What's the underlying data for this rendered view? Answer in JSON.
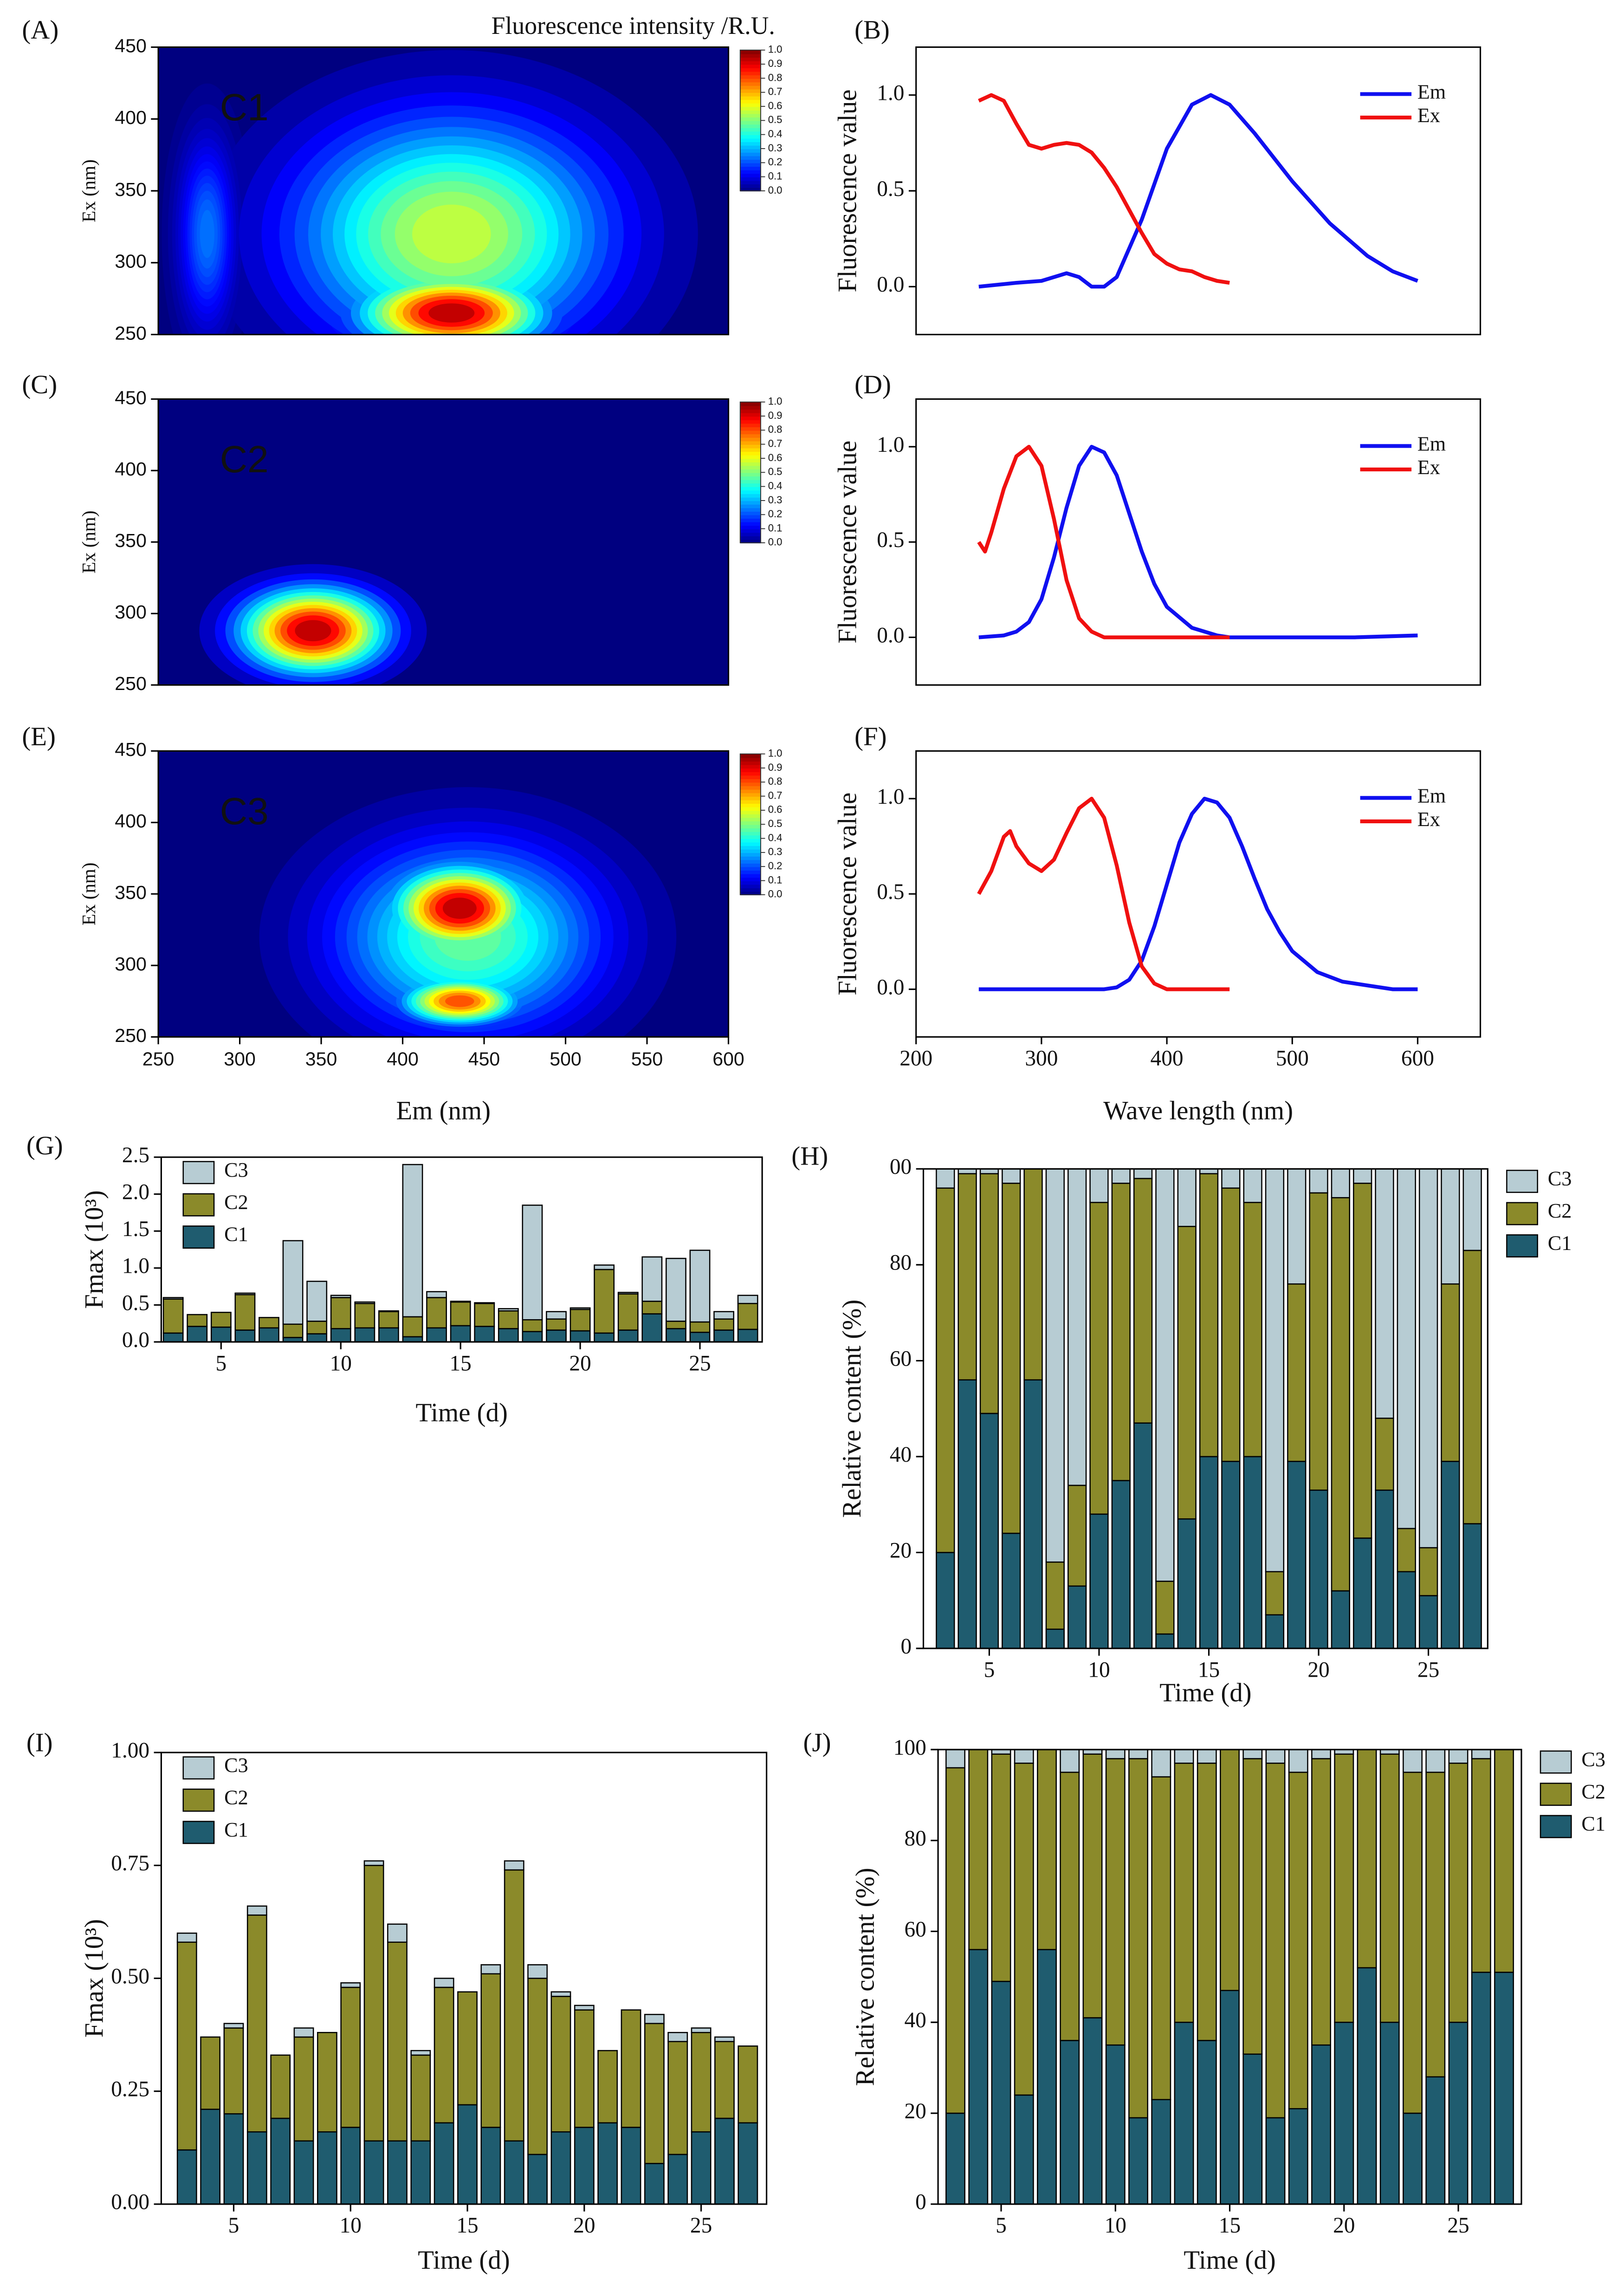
{
  "chart_data": [
    {
      "type": "contour",
      "label": "(A)",
      "annotation": "C1",
      "colorbar_title": "Fluorescence intensity /R.U.",
      "xlim": [
        250,
        600
      ],
      "ylim": [
        250,
        450
      ],
      "yticks": [
        250,
        300,
        350,
        400,
        450
      ],
      "ylabel": "Ex (nm)",
      "colorbar_ticks": [
        {
          "value": 0,
          "label": "0.0"
        },
        0.1,
        0.2,
        0.3,
        0.4,
        0.5,
        0.6,
        0.7,
        0.8,
        0.9,
        {
          "value": 1,
          "label": "1.0"
        }
      ],
      "peaks": [
        {
          "em": 280,
          "ex": 320,
          "em_spread": 12,
          "ex_spread": 45,
          "value": 0.25
        },
        {
          "em": 430,
          "ex": 320,
          "em_spread": 65,
          "ex_spread": 55,
          "value": 0.6
        },
        {
          "em": 430,
          "ex": 265,
          "em_spread": 38,
          "ex_spread": 18,
          "value": 1.0
        }
      ]
    },
    {
      "type": "line",
      "label": "(B)",
      "xlim": [
        200,
        650
      ],
      "ylim": [
        -0.25,
        1.25
      ],
      "yticks": [
        {
          "value": 0,
          "label": "0.0"
        },
        0.5,
        {
          "value": 1,
          "label": "1.0"
        }
      ],
      "ylabel": "Fluorescence value",
      "legend": "upper right",
      "series": [
        {
          "name": "Em",
          "color": "#1010f0",
          "x": [
            250,
            280,
            300,
            320,
            330,
            340,
            350,
            360,
            380,
            400,
            420,
            435,
            450,
            470,
            500,
            530,
            560,
            580,
            600
          ],
          "values": [
            0.0,
            0.02,
            0.03,
            0.07,
            0.05,
            0.0,
            0.0,
            0.05,
            0.35,
            0.72,
            0.95,
            1.0,
            0.95,
            0.8,
            0.55,
            0.33,
            0.16,
            0.08,
            0.03
          ]
        },
        {
          "name": "Ex",
          "color": "#f01010",
          "x": [
            250,
            260,
            270,
            280,
            290,
            300,
            310,
            320,
            330,
            340,
            350,
            360,
            370,
            380,
            390,
            400,
            410,
            420,
            430,
            440,
            450
          ],
          "values": [
            0.97,
            1.0,
            0.97,
            0.85,
            0.74,
            0.72,
            0.74,
            0.75,
            0.74,
            0.7,
            0.62,
            0.52,
            0.4,
            0.28,
            0.17,
            0.12,
            0.09,
            0.08,
            0.05,
            0.03,
            0.02
          ]
        }
      ]
    },
    {
      "type": "contour",
      "label": "(C)",
      "annotation": "C2",
      "xlim": [
        250,
        600
      ],
      "ylim": [
        250,
        450
      ],
      "yticks": [
        250,
        300,
        350,
        400,
        450
      ],
      "ylabel": "Ex (nm)",
      "colorbar_ticks": [
        {
          "value": 0,
          "label": "0.0"
        },
        0.1,
        0.2,
        0.3,
        0.4,
        0.5,
        0.6,
        0.7,
        0.8,
        0.9,
        {
          "value": 1,
          "label": "1.0"
        }
      ],
      "peaks": [
        {
          "em": 345,
          "ex": 288,
          "em_spread": 30,
          "ex_spread": 20,
          "value": 1.0
        }
      ]
    },
    {
      "type": "line",
      "label": "(D)",
      "xlim": [
        200,
        650
      ],
      "ylim": [
        -0.25,
        1.25
      ],
      "yticks": [
        {
          "value": 0,
          "label": "0.0"
        },
        0.5,
        {
          "value": 1,
          "label": "1.0"
        }
      ],
      "ylabel": "Fluorescence value",
      "legend": "upper right",
      "series": [
        {
          "name": "Em",
          "color": "#1010f0",
          "x": [
            250,
            270,
            280,
            290,
            300,
            310,
            320,
            330,
            340,
            350,
            360,
            370,
            380,
            390,
            400,
            420,
            440,
            450,
            500,
            550,
            600
          ],
          "values": [
            0.0,
            0.01,
            0.03,
            0.08,
            0.2,
            0.42,
            0.68,
            0.9,
            1.0,
            0.97,
            0.85,
            0.65,
            0.45,
            0.28,
            0.16,
            0.05,
            0.01,
            0.0,
            0.0,
            0.0,
            0.01
          ]
        },
        {
          "name": "Ex",
          "color": "#f01010",
          "x": [
            250,
            255,
            260,
            270,
            280,
            290,
            300,
            310,
            320,
            330,
            340,
            350,
            400,
            450
          ],
          "values": [
            0.5,
            0.45,
            0.55,
            0.78,
            0.95,
            1.0,
            0.9,
            0.62,
            0.3,
            0.1,
            0.03,
            0.0,
            0.0,
            0.0
          ]
        }
      ]
    },
    {
      "type": "contour",
      "label": "(E)",
      "annotation": "C3",
      "xlim": [
        250,
        600
      ],
      "ylim": [
        250,
        450
      ],
      "xticks": [
        250,
        300,
        350,
        400,
        450,
        500,
        550,
        600
      ],
      "yticks": [
        250,
        300,
        350,
        400,
        450
      ],
      "xlabel": "Em (nm)",
      "ylabel": "Ex (nm)",
      "colorbar_ticks": [
        {
          "value": 0,
          "label": "0.0"
        },
        0.1,
        0.2,
        0.3,
        0.4,
        0.5,
        0.6,
        0.7,
        0.8,
        0.9,
        {
          "value": 1,
          "label": "1.0"
        }
      ],
      "peaks": [
        {
          "em": 440,
          "ex": 320,
          "em_spread": 55,
          "ex_spread": 45,
          "value": 0.5
        },
        {
          "em": 435,
          "ex": 275,
          "em_spread": 24,
          "ex_spread": 11,
          "value": 0.85
        },
        {
          "em": 435,
          "ex": 340,
          "em_spread": 28,
          "ex_spread": 20,
          "value": 1.0
        }
      ]
    },
    {
      "type": "line",
      "label": "(F)",
      "xlim": [
        200,
        650
      ],
      "ylim": [
        -0.25,
        1.25
      ],
      "xticks": [
        200,
        300,
        400,
        500,
        600
      ],
      "yticks": [
        {
          "value": 0,
          "label": "0.0"
        },
        0.5,
        {
          "value": 1,
          "label": "1.0"
        }
      ],
      "xlabel": "Wave length (nm)",
      "ylabel": "Fluorescence value",
      "legend": "upper right",
      "series": [
        {
          "name": "Em",
          "color": "#1010f0",
          "x": [
            250,
            350,
            360,
            370,
            380,
            390,
            400,
            410,
            420,
            430,
            440,
            450,
            460,
            470,
            480,
            490,
            500,
            520,
            540,
            560,
            580,
            600
          ],
          "values": [
            0.0,
            0.0,
            0.01,
            0.05,
            0.15,
            0.33,
            0.55,
            0.77,
            0.92,
            1.0,
            0.98,
            0.9,
            0.75,
            0.58,
            0.42,
            0.3,
            0.2,
            0.09,
            0.04,
            0.02,
            0.0,
            0.0
          ]
        },
        {
          "name": "Ex",
          "color": "#f01010",
          "x": [
            250,
            260,
            270,
            275,
            280,
            290,
            300,
            310,
            320,
            330,
            340,
            350,
            360,
            370,
            380,
            390,
            400,
            450
          ],
          "values": [
            0.5,
            0.62,
            0.8,
            0.83,
            0.75,
            0.66,
            0.62,
            0.68,
            0.82,
            0.95,
            1.0,
            0.9,
            0.65,
            0.35,
            0.12,
            0.03,
            0.0,
            0.0
          ]
        }
      ]
    },
    {
      "type": "stacked_bar",
      "label": "(G)",
      "xlim": [
        2.5,
        27.6
      ],
      "xticks": [
        5,
        10,
        15,
        20,
        25
      ],
      "ylim": [
        0,
        2.5
      ],
      "yticks": [
        {
          "value": 0,
          "label": "0.0"
        },
        0.5,
        {
          "value": 1,
          "label": "1.0"
        },
        1.5,
        {
          "value": 2,
          "label": "2.0"
        },
        2.5
      ],
      "xlabel": "Time (d)",
      "ylabel": "Fmax (10³)",
      "legend": "upper left",
      "x": [
        3,
        4,
        5,
        6,
        7,
        8,
        9,
        10,
        11,
        12,
        13,
        14,
        15,
        16,
        17,
        18,
        19,
        20,
        21,
        22,
        23,
        24,
        25,
        26,
        27
      ],
      "series": [
        {
          "name": "C1",
          "color": "#1f5c6f",
          "values": [
            0.12,
            0.21,
            0.2,
            0.16,
            0.19,
            0.06,
            0.11,
            0.18,
            0.19,
            0.19,
            0.07,
            0.19,
            0.22,
            0.21,
            0.18,
            0.14,
            0.16,
            0.15,
            0.12,
            0.16,
            0.38,
            0.18,
            0.13,
            0.16,
            0.17
          ]
        },
        {
          "name": "C2",
          "color": "#8b8a2a",
          "values": [
            0.46,
            0.16,
            0.2,
            0.48,
            0.14,
            0.18,
            0.17,
            0.42,
            0.33,
            0.22,
            0.27,
            0.41,
            0.32,
            0.31,
            0.24,
            0.16,
            0.15,
            0.29,
            0.86,
            0.49,
            0.17,
            0.1,
            0.14,
            0.15,
            0.35
          ]
        },
        {
          "name": "C3",
          "color": "#b7ccd3",
          "values": [
            0.02,
            0.0,
            0.0,
            0.02,
            0.0,
            1.13,
            0.54,
            0.03,
            0.02,
            0.01,
            2.06,
            0.08,
            0.01,
            0.01,
            0.03,
            1.55,
            0.1,
            0.02,
            0.06,
            0.02,
            0.6,
            0.85,
            0.97,
            0.1,
            0.11
          ]
        }
      ]
    },
    {
      "type": "stacked_bar",
      "label": "(H)",
      "xlim": [
        2.0,
        27.7
      ],
      "xticks": [
        5,
        10,
        15,
        20,
        25
      ],
      "ylim": [
        0,
        100
      ],
      "yticks": [
        0,
        20,
        40,
        60,
        80,
        {
          "value": 100,
          "label": "00"
        }
      ],
      "xlabel": "Time (d)",
      "ylabel": "Relative content (%)",
      "legend": "outside right",
      "x": [
        3,
        4,
        5,
        6,
        7,
        8,
        9,
        10,
        11,
        12,
        13,
        14,
        15,
        16,
        17,
        18,
        19,
        20,
        21,
        22,
        23,
        24,
        25,
        26,
        27
      ],
      "series": [
        {
          "name": "C1",
          "color": "#1f5c6f",
          "values": [
            20,
            56,
            49,
            24,
            56,
            4,
            13,
            28,
            35,
            47,
            3,
            27,
            40,
            39,
            40,
            7,
            39,
            33,
            12,
            23,
            33,
            16,
            11,
            39,
            26
          ]
        },
        {
          "name": "C2",
          "color": "#8b8a2a",
          "values": [
            76,
            43,
            50,
            73,
            44,
            14,
            21,
            65,
            62,
            51,
            11,
            61,
            59,
            57,
            53,
            9,
            37,
            62,
            82,
            74,
            15,
            9,
            10,
            37,
            57
          ]
        },
        {
          "name": "C3",
          "color": "#b7ccd3",
          "values": [
            4,
            1,
            1,
            3,
            0,
            82,
            66,
            7,
            3,
            2,
            86,
            12,
            1,
            4,
            7,
            84,
            24,
            5,
            6,
            3,
            52,
            75,
            79,
            24,
            17
          ]
        }
      ]
    },
    {
      "type": "stacked_bar",
      "label": "(I)",
      "xlim": [
        1.9,
        27.8
      ],
      "xticks": [
        5,
        10,
        15,
        20,
        25
      ],
      "ylim": [
        0,
        1
      ],
      "yticks": [
        {
          "value": 0,
          "label": "0.00"
        },
        0.25,
        {
          "value": 0.5,
          "label": "0.50"
        },
        0.75,
        {
          "value": 1,
          "label": "1.00"
        }
      ],
      "xlabel": "Time (d)",
      "ylabel": "Fmax (10³)",
      "legend": "upper left",
      "x": [
        3,
        4,
        5,
        6,
        7,
        8,
        9,
        10,
        11,
        12,
        13,
        14,
        15,
        16,
        17,
        18,
        19,
        20,
        21,
        22,
        23,
        24,
        25,
        26,
        27
      ],
      "series": [
        {
          "name": "C1",
          "color": "#1f5c6f",
          "values": [
            0.12,
            0.21,
            0.2,
            0.16,
            0.19,
            0.14,
            0.16,
            0.17,
            0.14,
            0.14,
            0.14,
            0.18,
            0.22,
            0.17,
            0.14,
            0.11,
            0.16,
            0.17,
            0.18,
            0.17,
            0.09,
            0.11,
            0.16,
            0.19,
            0.18
          ]
        },
        {
          "name": "C2",
          "color": "#8b8a2a",
          "values": [
            0.46,
            0.16,
            0.19,
            0.48,
            0.14,
            0.23,
            0.22,
            0.31,
            0.61,
            0.44,
            0.19,
            0.3,
            0.25,
            0.34,
            0.6,
            0.39,
            0.3,
            0.26,
            0.16,
            0.26,
            0.31,
            0.25,
            0.22,
            0.17,
            0.17
          ]
        },
        {
          "name": "C3",
          "color": "#b7ccd3",
          "values": [
            0.02,
            0.0,
            0.01,
            0.02,
            0.0,
            0.02,
            0.0,
            0.01,
            0.01,
            0.04,
            0.01,
            0.02,
            0.0,
            0.02,
            0.02,
            0.03,
            0.01,
            0.01,
            0.0,
            0.0,
            0.02,
            0.02,
            0.01,
            0.01,
            0.0
          ]
        }
      ]
    },
    {
      "type": "stacked_bar",
      "label": "(J)",
      "xlim": [
        2.24,
        27.76
      ],
      "xticks": [
        5,
        10,
        15,
        20,
        25
      ],
      "ylim": [
        0,
        100
      ],
      "yticks": [
        0,
        20,
        40,
        60,
        80,
        100
      ],
      "xlabel": "Time (d)",
      "ylabel": "Relative content (%)",
      "legend": "outside right",
      "x": [
        3,
        4,
        5,
        6,
        7,
        8,
        9,
        10,
        11,
        12,
        13,
        14,
        15,
        16,
        17,
        18,
        19,
        20,
        21,
        22,
        23,
        24,
        25,
        26,
        27
      ],
      "series": [
        {
          "name": "C1",
          "color": "#1f5c6f",
          "values": [
            20,
            56,
            49,
            24,
            56,
            36,
            41,
            35,
            19,
            23,
            40,
            36,
            47,
            33,
            19,
            21,
            35,
            40,
            52,
            40,
            20,
            28,
            40,
            51,
            51
          ]
        },
        {
          "name": "C2",
          "color": "#8b8a2a",
          "values": [
            76,
            44,
            50,
            73,
            44,
            59,
            58,
            63,
            79,
            71,
            57,
            61,
            53,
            65,
            78,
            74,
            63,
            59,
            48,
            59,
            75,
            67,
            57,
            47,
            49
          ]
        },
        {
          "name": "C3",
          "color": "#b7ccd3",
          "values": [
            4,
            0,
            1,
            3,
            0,
            5,
            1,
            2,
            2,
            6,
            3,
            3,
            0,
            2,
            3,
            5,
            2,
            1,
            0,
            1,
            5,
            5,
            3,
            2,
            0
          ]
        }
      ]
    }
  ]
}
